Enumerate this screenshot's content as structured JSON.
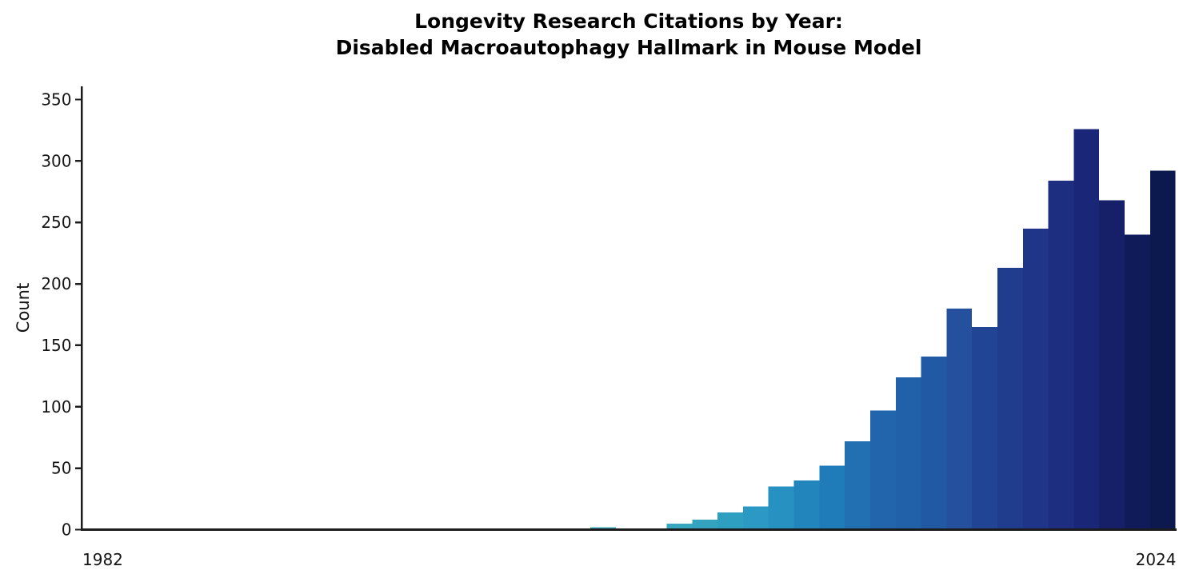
{
  "page": {
    "background": "#ffffff"
  },
  "chart_data": {
    "type": "bar",
    "title": "Longevity Research Citations by Year:\nDisabled Macroautophagy Hallmark in Mouse Model",
    "title_lines": [
      "Longevity Research Citations by Year:",
      "Disabled Macroautophagy Hallmark in Mouse Model"
    ],
    "xlabel": "",
    "ylabel": "Count",
    "categories": [
      1982,
      1983,
      1984,
      1985,
      1986,
      1987,
      1988,
      1989,
      1990,
      1991,
      1992,
      1993,
      1994,
      1995,
      1996,
      1997,
      1998,
      1999,
      2000,
      2001,
      2002,
      2003,
      2004,
      2005,
      2006,
      2007,
      2008,
      2009,
      2010,
      2011,
      2012,
      2013,
      2014,
      2015,
      2016,
      2017,
      2018,
      2019,
      2020,
      2021,
      2022,
      2023,
      2024
    ],
    "values": [
      1,
      0,
      0,
      0,
      0,
      0,
      0,
      0,
      0,
      0,
      0,
      0,
      1,
      1,
      0,
      0,
      1,
      0,
      1,
      0,
      2,
      0,
      1,
      5,
      8,
      14,
      19,
      35,
      40,
      52,
      72,
      97,
      124,
      141,
      180,
      165,
      213,
      245,
      284,
      326,
      268,
      240,
      292
    ],
    "bar_colors": [
      "#7cc79b",
      "#77c59d",
      "#72c39f",
      "#6dc1a1",
      "#68bfa3",
      "#63bda5",
      "#5fbca8",
      "#5abaaa",
      "#55b8ac",
      "#50b6ae",
      "#4bb4b0",
      "#46b2b2",
      "#41b0b4",
      "#3fafb8",
      "#3daeb9",
      "#3cacba",
      "#3caabb",
      "#3ba9bc",
      "#3aa9bb",
      "#39a8bc",
      "#39a8bd",
      "#38a7be",
      "#38a7bf",
      "#37a6be",
      "#33a3c0",
      "#2f9fc1",
      "#2b99c3",
      "#2791c1",
      "#2286bd",
      "#1f7cb8",
      "#2270b2",
      "#2365ac",
      "#2161aa",
      "#2259a4",
      "#24509d",
      "#214594",
      "#203d8d",
      "#1f3587",
      "#1d2e80",
      "#1a2677",
      "#162068",
      "#0f1c59",
      "#0b194e"
    ],
    "y_ticks": [
      0,
      50,
      100,
      150,
      200,
      250,
      300,
      350
    ],
    "x_tick_labels_visible": [
      "1982",
      "2024"
    ],
    "ylim": [
      0,
      360
    ],
    "xlim_years": [
      1982,
      2024
    ],
    "grid": false,
    "legend_shown": false,
    "axis_color": "#1c1c1c",
    "text_color": "#141414"
  }
}
